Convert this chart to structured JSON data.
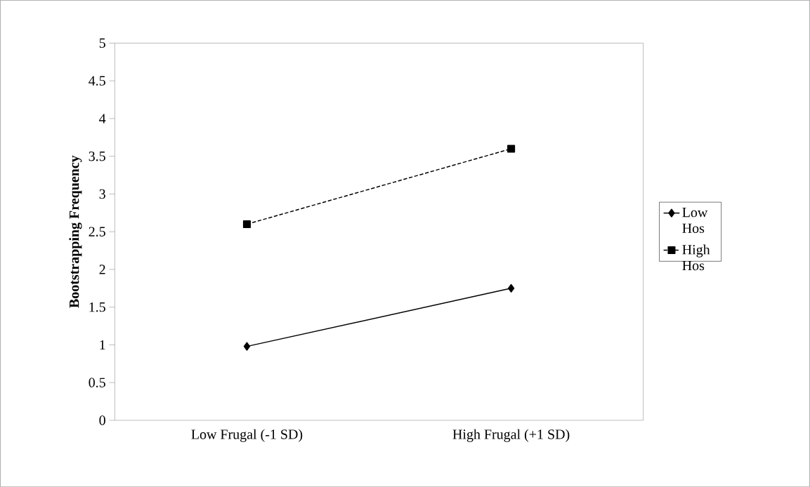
{
  "chart_data": {
    "type": "line",
    "ylabel": "Bootstrapping Frequency",
    "categories": [
      "Low Frugal (-1 SD)",
      "High Frugal (+1 SD)"
    ],
    "series": [
      {
        "name": "Low Hos",
        "color": "#000000",
        "values": [
          0.98,
          1.75
        ],
        "marker": "diamond",
        "line_style": "solid"
      },
      {
        "name": "High Hos",
        "color": "#000000",
        "values": [
          2.6,
          3.6
        ],
        "marker": "square",
        "line_style": "dashed"
      }
    ],
    "ylim": [
      0,
      5
    ],
    "yticks": [
      0,
      0.5,
      1,
      1.5,
      2,
      2.5,
      3,
      3.5,
      4,
      4.5,
      5
    ],
    "grid": false,
    "legend": "right"
  }
}
